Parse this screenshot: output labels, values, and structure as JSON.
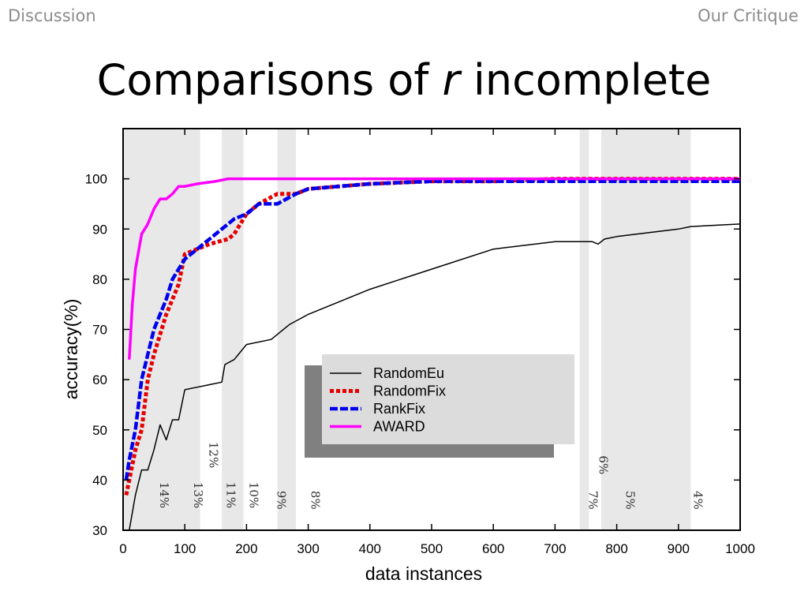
{
  "header": {
    "left": "Discussion",
    "right": "Our Critique"
  },
  "title": {
    "prefix": "Comparisons of ",
    "italic": "r",
    "suffix": " incomplete"
  },
  "chart_data": {
    "type": "line",
    "xlabel": "data instances",
    "ylabel": "accuracy(%)",
    "xlim": [
      0,
      1000
    ],
    "ylim": [
      30,
      110
    ],
    "xticks": [
      0,
      100,
      200,
      300,
      400,
      500,
      600,
      700,
      800,
      900,
      1000
    ],
    "yticks": [
      30,
      40,
      50,
      60,
      70,
      80,
      90,
      100
    ],
    "grid": false,
    "legend_position": "lower-center",
    "shaded_bands": [
      [
        0,
        125
      ],
      [
        160,
        195
      ],
      [
        250,
        280
      ],
      [
        740,
        755
      ],
      [
        775,
        920
      ]
    ],
    "band_labels": [
      {
        "x": 60,
        "y": 37,
        "text": "14%"
      },
      {
        "x": 115,
        "y": 37,
        "text": "13%"
      },
      {
        "x": 140,
        "y": 45,
        "text": "12%"
      },
      {
        "x": 168,
        "y": 37,
        "text": "11%"
      },
      {
        "x": 205,
        "y": 37,
        "text": "10%"
      },
      {
        "x": 250,
        "y": 36,
        "text": "9%"
      },
      {
        "x": 305,
        "y": 36,
        "text": "8%"
      },
      {
        "x": 755,
        "y": 36,
        "text": "7%"
      },
      {
        "x": 772,
        "y": 43,
        "text": "6%"
      },
      {
        "x": 815,
        "y": 36,
        "text": "5%"
      },
      {
        "x": 925,
        "y": 36,
        "text": "4%"
      }
    ],
    "series": [
      {
        "name": "RandomEu",
        "color": "#000000",
        "style": "solid",
        "width": 1.5,
        "x": [
          10,
          20,
          30,
          40,
          50,
          60,
          70,
          80,
          90,
          100,
          120,
          140,
          160,
          165,
          180,
          200,
          240,
          270,
          300,
          400,
          500,
          600,
          700,
          760,
          770,
          780,
          800,
          900,
          920,
          1000
        ],
        "y": [
          30,
          37,
          42,
          42,
          46,
          51,
          48,
          52,
          52,
          58,
          58.5,
          59,
          59.5,
          63,
          64,
          67,
          68,
          71,
          73,
          78,
          82,
          86,
          87.5,
          87.5,
          87,
          88,
          88.5,
          90,
          90.5,
          91
        ]
      },
      {
        "name": "RandomFix",
        "color": "#e60000",
        "style": "dotted",
        "width": 5,
        "x": [
          5,
          10,
          20,
          30,
          40,
          50,
          60,
          70,
          80,
          90,
          100,
          120,
          140,
          170,
          180,
          200,
          220,
          250,
          280,
          300,
          400,
          500,
          600,
          700,
          800,
          900,
          1000
        ],
        "y": [
          37,
          40,
          46,
          50,
          60,
          65,
          69,
          73,
          76,
          79,
          85,
          86,
          87,
          88,
          89,
          93,
          95,
          97,
          97,
          98,
          99,
          99.5,
          99.5,
          100,
          100,
          100,
          100
        ]
      },
      {
        "name": "RankFix",
        "color": "#0000ee",
        "style": "dashed",
        "width": 4.5,
        "x": [
          5,
          10,
          20,
          30,
          40,
          50,
          60,
          70,
          80,
          90,
          100,
          120,
          140,
          160,
          180,
          200,
          220,
          250,
          280,
          300,
          400,
          500,
          600,
          700,
          800,
          900,
          1000
        ],
        "y": [
          40,
          44,
          50,
          60,
          65,
          70,
          73,
          76,
          80,
          82,
          84,
          86,
          88,
          90,
          92,
          93,
          95,
          95,
          97,
          98,
          99,
          99.5,
          99.5,
          99.5,
          99.5,
          99.5,
          99.5
        ]
      },
      {
        "name": "AWARD",
        "color": "#ff00ff",
        "style": "solid",
        "width": 3.5,
        "x": [
          10,
          15,
          20,
          30,
          40,
          50,
          60,
          70,
          80,
          90,
          100,
          120,
          150,
          170,
          200,
          300,
          500,
          700,
          800,
          900,
          1000
        ],
        "y": [
          64,
          75,
          82,
          89,
          91,
          94,
          96,
          96,
          97,
          98.5,
          98.5,
          99,
          99.5,
          100,
          100,
          100,
          100,
          100,
          100,
          100,
          100
        ]
      }
    ]
  }
}
